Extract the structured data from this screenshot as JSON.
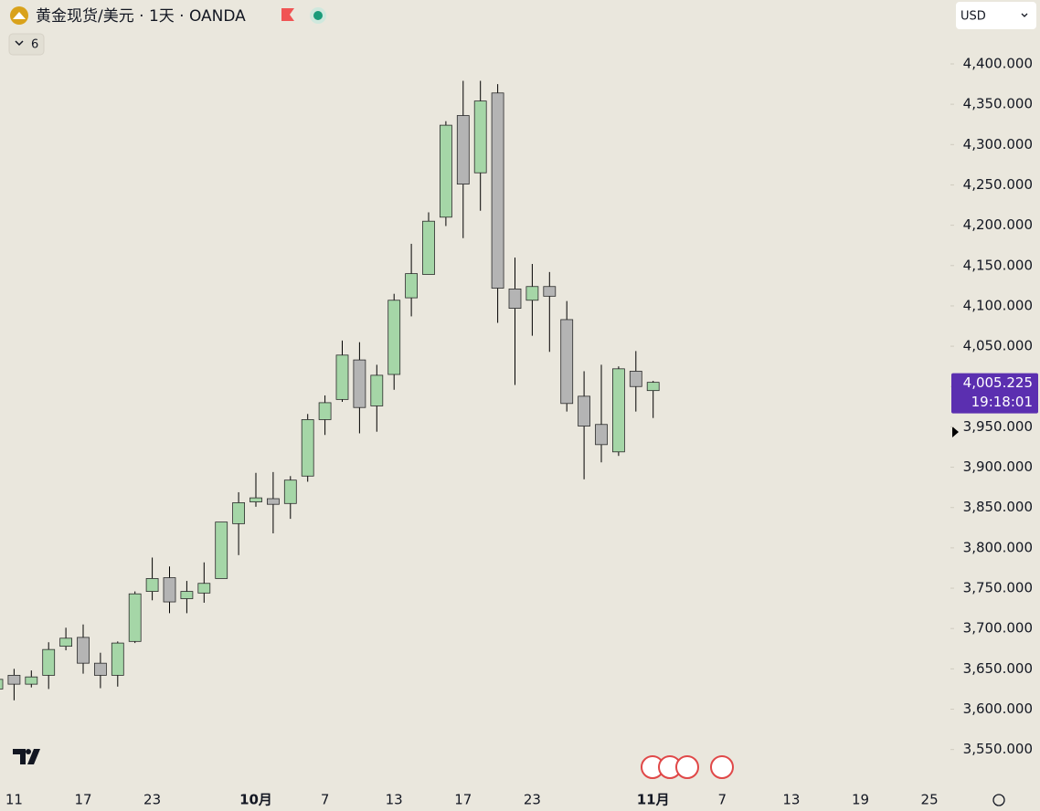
{
  "chart_data": {
    "type": "candlestick",
    "title": "黄金现货/美元 · 1天 · OANDA",
    "indicator_count": 6,
    "currency": "USD",
    "categories": [
      null,
      "11",
      null,
      null,
      null,
      "17",
      null,
      null,
      null,
      "23",
      null,
      null,
      null,
      null,
      null,
      "10月",
      null,
      null,
      null,
      "7",
      null,
      null,
      null,
      "13",
      null,
      null,
      null,
      "17",
      null,
      null,
      null,
      "23",
      null,
      null,
      null,
      null,
      null,
      null,
      "11月",
      null,
      null,
      null,
      "7",
      null,
      null,
      null,
      "13",
      null,
      null,
      null,
      "19",
      null,
      null,
      null,
      "25",
      null
    ],
    "open": [
      3625,
      3642,
      3631,
      3642,
      3678,
      3689,
      3657,
      3642,
      3684,
      3746,
      3763,
      3737,
      3744,
      3762,
      3830,
      3857,
      3861,
      3855,
      3889,
      3959,
      3984,
      4033,
      3976,
      4015,
      4110,
      4139,
      4210,
      4336,
      4265,
      4364,
      4121,
      4107,
      4124,
      4083,
      3988,
      3953,
      3919,
      4019,
      3995,
      null,
      null,
      null,
      null,
      null,
      null,
      null,
      null,
      null,
      null,
      null,
      null,
      null,
      null,
      null,
      null,
      null
    ],
    "high": [
      3640,
      3650,
      3648,
      3683,
      3701,
      3705,
      3670,
      3684,
      3746,
      3788,
      3777,
      3759,
      3782,
      3832,
      3869,
      3893,
      3894,
      3889,
      3966,
      3989,
      4057,
      4055,
      4027,
      4115,
      4177,
      4216,
      4329,
      4379,
      4379,
      4375,
      4160,
      4152,
      4142,
      4106,
      4019,
      4027,
      4025,
      4044,
      4007,
      null,
      null,
      null,
      null,
      null,
      null,
      null,
      null,
      null,
      null,
      null,
      null,
      null,
      null,
      null,
      null,
      null
    ],
    "low": [
      3622,
      3611,
      3627,
      3625,
      3673,
      3644,
      3626,
      3628,
      3682,
      3735,
      3719,
      3719,
      3732,
      3762,
      3791,
      3851,
      3818,
      3836,
      3882,
      3940,
      3981,
      3942,
      3944,
      3996,
      4087,
      4139,
      4199,
      4184,
      4218,
      4079,
      4002,
      4063,
      4043,
      3969,
      3885,
      3906,
      3914,
      3969,
      3961,
      null,
      null,
      null,
      null,
      null,
      null,
      null,
      null,
      null,
      null,
      null,
      null,
      null,
      null,
      null,
      null,
      null
    ],
    "close": [
      3637,
      3631,
      3640,
      3674,
      3688,
      3657,
      3642,
      3682,
      3743,
      3762,
      3733,
      3746,
      3756,
      3832,
      3856,
      3862,
      3854,
      3884,
      3959,
      3980,
      4039,
      3974,
      4014,
      4107,
      4140,
      4205,
      4324,
      4251,
      4354,
      4122,
      4097,
      4124,
      4112,
      3979,
      3951,
      3928,
      4022,
      4000,
      4005.225,
      null,
      null,
      null,
      null,
      null,
      null,
      null,
      null,
      null,
      null,
      null,
      null,
      null,
      null,
      null,
      null,
      null
    ],
    "up_color": "#a5d6a7",
    "down_color": "#b4b4b4",
    "ylim": [
      3510,
      4460
    ],
    "yticks": [
      {
        "value": 3550,
        "label": "3,550.000"
      },
      {
        "value": 3600,
        "label": "3,600.000"
      },
      {
        "value": 3650,
        "label": "3,650.000"
      },
      {
        "value": 3700,
        "label": "3,700.000"
      },
      {
        "value": 3750,
        "label": "3,750.000"
      },
      {
        "value": 3800,
        "label": "3,800.000"
      },
      {
        "value": 3850,
        "label": "3,850.000"
      },
      {
        "value": 3900,
        "label": "3,900.000"
      },
      {
        "value": 3950,
        "label": "3,950.000"
      },
      {
        "value": 4000,
        "label": "4,000.000"
      },
      {
        "value": 4050,
        "label": "4,050.000"
      },
      {
        "value": 4100,
        "label": "4,100.000"
      },
      {
        "value": 4150,
        "label": "4,150.000"
      },
      {
        "value": 4200,
        "label": "4,200.000"
      },
      {
        "value": 4250,
        "label": "4,250.000"
      },
      {
        "value": 4300,
        "label": "4,300.000"
      },
      {
        "value": 4350,
        "label": "4,350.000"
      },
      {
        "value": 4400,
        "label": "4,400.000"
      }
    ],
    "last_price": {
      "value": 4005.225,
      "label": "4,005.225"
    },
    "countdown": "19:18:01",
    "price_box_color": "#5b2fb0",
    "grid": false
  }
}
